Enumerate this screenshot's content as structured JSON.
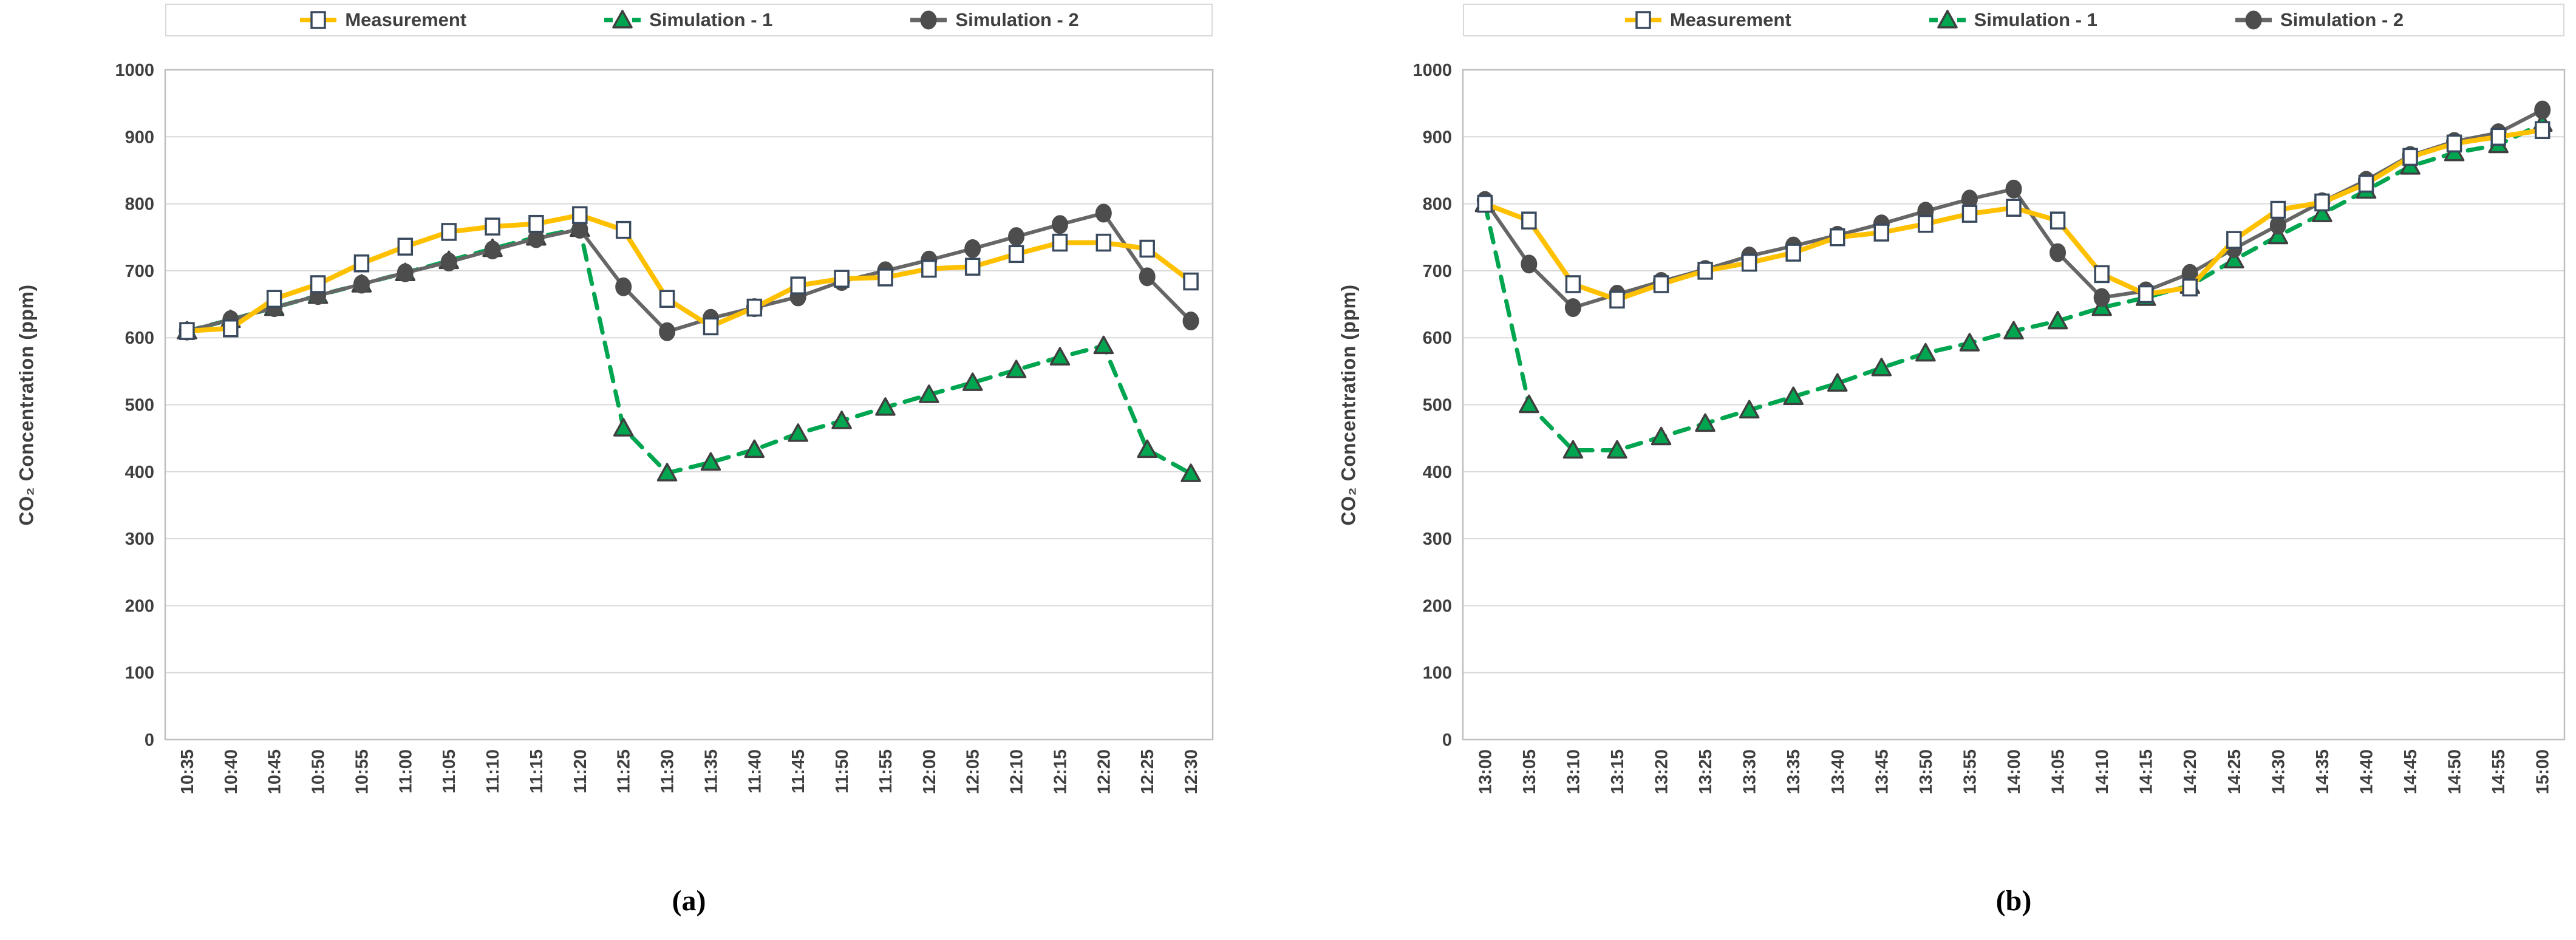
{
  "figure_style": {
    "background": "#FFFFFF",
    "grid_color": "#D9D9D9",
    "axis_border_color": "#BFBFBF",
    "tick_label_color": "#3F3F3F",
    "legend_text_color": "#404040",
    "caption_color": "#000000"
  },
  "chart_data": [
    {
      "type": "line",
      "caption": "(a)",
      "ylabel": "CO₂ Concentration (ppm)",
      "xlabel": "",
      "ylim": [
        0,
        1000
      ],
      "y_ticks": [
        0,
        100,
        200,
        300,
        400,
        500,
        600,
        700,
        800,
        900,
        1000
      ],
      "grid": "horizontal",
      "legend_position": "top",
      "categories": [
        "10:35",
        "10:40",
        "10:45",
        "10:50",
        "10:55",
        "11:00",
        "11:05",
        "11:10",
        "11:15",
        "11:20",
        "11:25",
        "11:30",
        "11:35",
        "11:40",
        "11:45",
        "11:50",
        "11:55",
        "12:00",
        "12:05",
        "12:10",
        "12:15",
        "12:20",
        "12:25",
        "12:30"
      ],
      "series": [
        {
          "name": "Measurement",
          "color": "#FFC000",
          "line_style": "solid",
          "line_width": 8,
          "marker": "open-square",
          "marker_fill": "#FFFFFF",
          "marker_border": "#3A4A5E",
          "values": [
            610,
            614,
            658,
            680,
            711,
            736,
            758,
            766,
            770,
            783,
            761,
            658,
            617,
            645,
            678,
            688,
            690,
            703,
            706,
            725,
            742,
            742,
            733,
            684
          ]
        },
        {
          "name": "Simulation - 1",
          "color": "#00A550",
          "line_style": "dashed",
          "line_width": 7,
          "marker": "triangle",
          "marker_fill": "#00A550",
          "marker_border": "#3F3F3F",
          "values": [
            610,
            627,
            645,
            663,
            680,
            697,
            715,
            733,
            750,
            763,
            465,
            398,
            414,
            433,
            457,
            476,
            496,
            515,
            533,
            552,
            571,
            588,
            433,
            397
          ]
        },
        {
          "name": "Simulation - 2",
          "color": "#666666",
          "line_style": "solid",
          "line_width": 6,
          "marker": "circle",
          "marker_fill": "#4D4D4D",
          "marker_border": "#4D4D4D",
          "values": [
            610,
            627,
            645,
            663,
            680,
            697,
            713,
            731,
            748,
            762,
            676,
            609,
            629,
            645,
            661,
            684,
            700,
            716,
            733,
            751,
            769,
            786,
            691,
            625
          ]
        }
      ]
    },
    {
      "type": "line",
      "caption": "(b)",
      "ylabel": "CO₂ Concentration (ppm)",
      "xlabel": "",
      "ylim": [
        0,
        1000
      ],
      "y_ticks": [
        0,
        100,
        200,
        300,
        400,
        500,
        600,
        700,
        800,
        900,
        1000
      ],
      "grid": "horizontal",
      "legend_position": "top",
      "categories": [
        "13:00",
        "13:05",
        "13:10",
        "13:15",
        "13:20",
        "13:25",
        "13:30",
        "13:35",
        "13:40",
        "13:45",
        "13:50",
        "13:55",
        "14:00",
        "14:05",
        "14:10",
        "14:15",
        "14:20",
        "14:25",
        "14:30",
        "14:35",
        "14:40",
        "14:45",
        "14:50",
        "14:55",
        "15:00"
      ],
      "series": [
        {
          "name": "Measurement",
          "color": "#FFC000",
          "line_style": "solid",
          "line_width": 8,
          "marker": "open-square",
          "marker_fill": "#FFFFFF",
          "marker_border": "#3A4A5E",
          "values": [
            800,
            775,
            680,
            657,
            680,
            700,
            712,
            727,
            750,
            757,
            770,
            785,
            794,
            775,
            695,
            665,
            675,
            746,
            791,
            802,
            830,
            870,
            890,
            900,
            910
          ]
        },
        {
          "name": "Simulation - 1",
          "color": "#00A550",
          "line_style": "dashed",
          "line_width": 7,
          "marker": "triangle",
          "marker_fill": "#00A550",
          "marker_border": "#3F3F3F",
          "values": [
            800,
            500,
            432,
            432,
            452,
            472,
            492,
            512,
            532,
            555,
            577,
            592,
            610,
            625,
            645,
            660,
            678,
            716,
            752,
            785,
            820,
            856,
            876,
            888,
            920
          ]
        },
        {
          "name": "Simulation - 2",
          "color": "#666666",
          "line_style": "solid",
          "line_width": 6,
          "marker": "circle",
          "marker_fill": "#4D4D4D",
          "marker_border": "#4D4D4D",
          "values": [
            805,
            710,
            645,
            665,
            684,
            702,
            722,
            737,
            753,
            770,
            789,
            807,
            822,
            727,
            660,
            670,
            696,
            733,
            768,
            803,
            835,
            872,
            893,
            906,
            940
          ]
        }
      ]
    }
  ]
}
